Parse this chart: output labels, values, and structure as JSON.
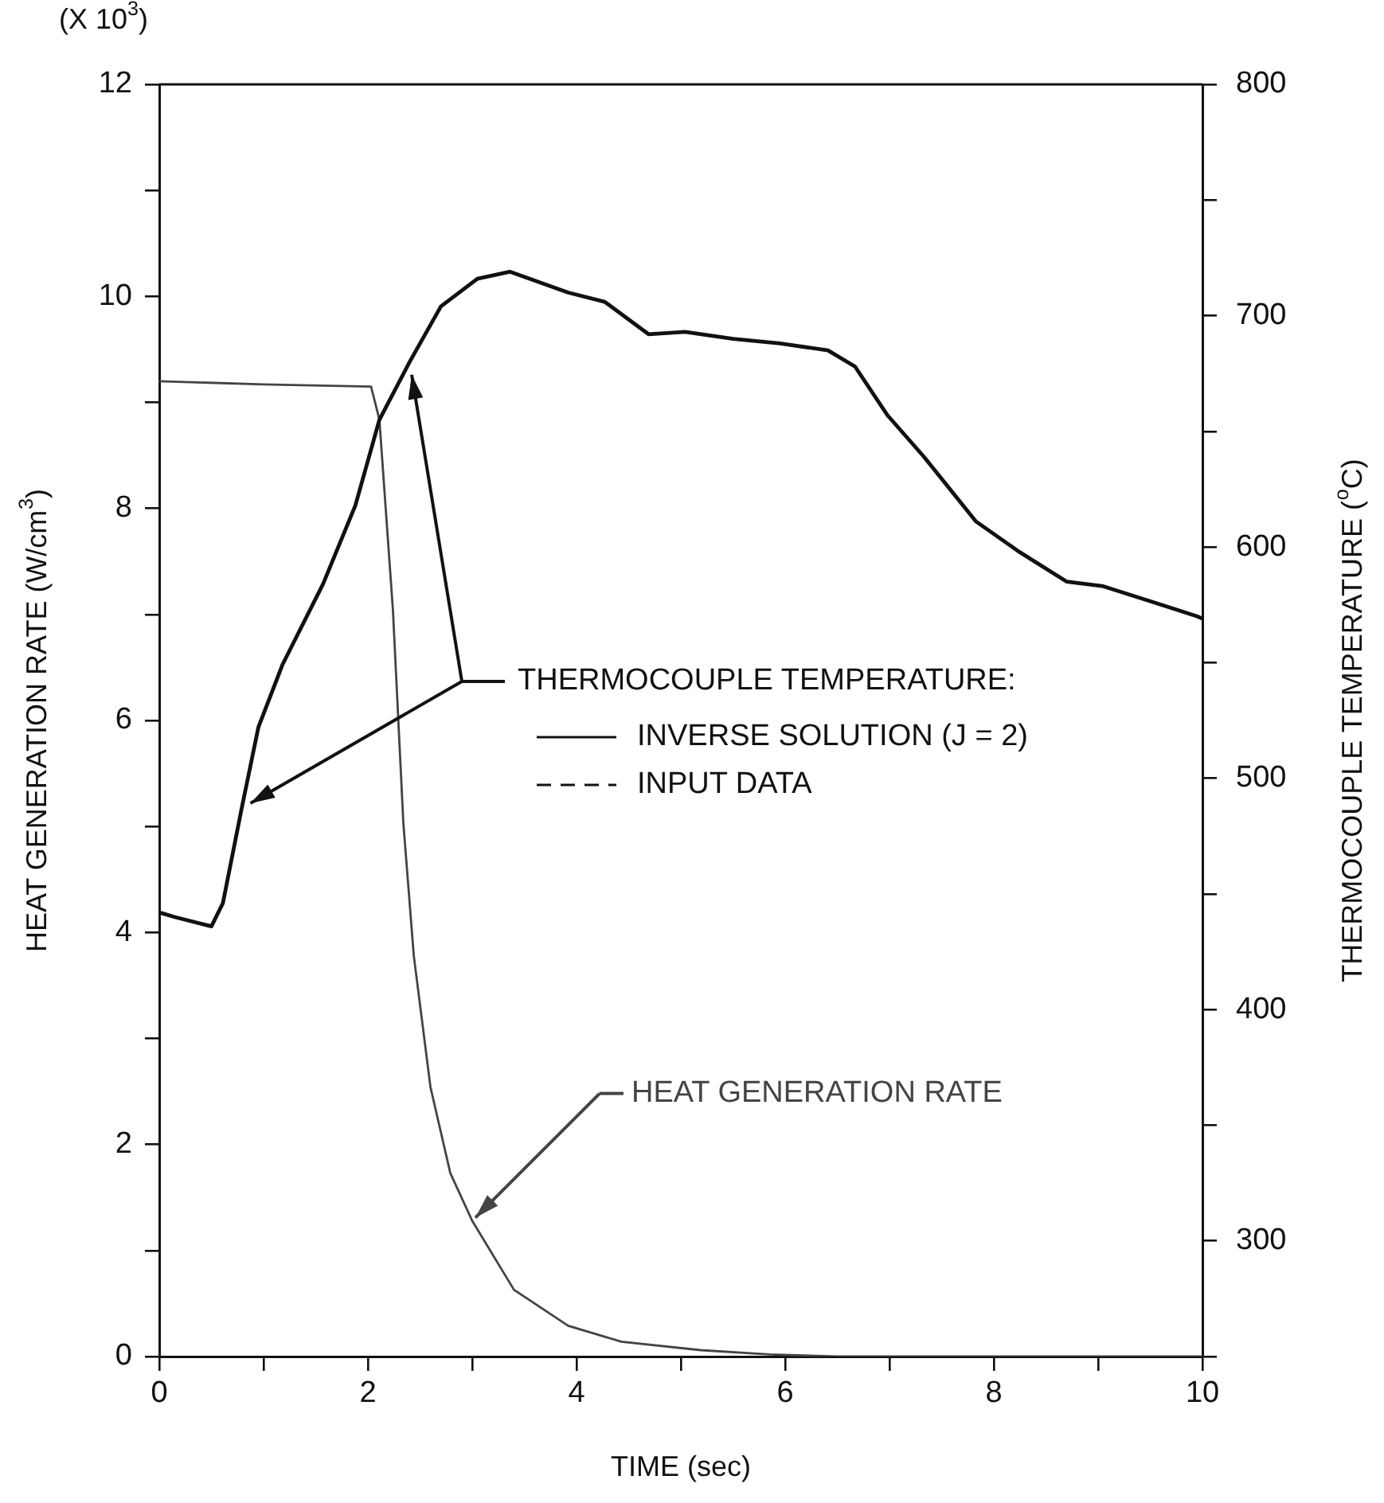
{
  "chart_data": {
    "type": "line",
    "xlabel": "TIME (sec)",
    "ylabel": "HEAT GENERATION RATE (W/cm$^{3}$)",
    "y2label": "THERMOCOUPLE TEMPERATURE ($^{o}$C)",
    "legend_title": "THERMOCOUPLE TEMPERATURE:",
    "legend": "right",
    "annotations": [
      "(X 10$^{3}$)"
    ],
    "xlim": [
      0,
      10
    ],
    "xticks": [
      0,
      {
        "value": 1,
        "label": null
      },
      2,
      {
        "value": 3,
        "label": null
      },
      4,
      {
        "value": 5,
        "label": null
      },
      6,
      {
        "value": 7,
        "label": null
      },
      8,
      {
        "value": 9,
        "label": null
      },
      10
    ],
    "ylim": [
      0,
      12
    ],
    "yticks": [
      0,
      {
        "value": 1,
        "label": null
      },
      2,
      {
        "value": 3,
        "label": null
      },
      4,
      {
        "value": 5,
        "label": null
      },
      6,
      {
        "value": 7,
        "label": null
      },
      8,
      {
        "value": 9,
        "label": null
      },
      10,
      {
        "value": 11,
        "label": null
      },
      12
    ],
    "y2lim": [
      250,
      800
    ],
    "y2ticks": [
      {
        "value": 250,
        "label": null
      },
      300,
      {
        "value": 350,
        "label": null
      },
      400,
      {
        "value": 450,
        "label": null
      },
      500,
      {
        "value": 550,
        "label": null
      },
      600,
      {
        "value": 650,
        "label": null
      },
      700,
      {
        "value": 750,
        "label": null
      },
      800
    ],
    "grid": false,
    "marker": "none",
    "series": [
      {
        "name": "INVERSE SOLUTION (J = 2)",
        "color": "#111111",
        "axis": "y2",
        "line_style": "solid",
        "x": [
          0,
          0.15,
          0.5,
          0.61,
          0.79,
          0.95,
          1.18,
          1.57,
          1.88,
          2.11,
          2.4,
          2.7,
          3.05,
          3.36,
          3.92,
          4.27,
          4.69,
          5.04,
          5.5,
          5.95,
          6.41,
          6.67,
          6.98,
          7.33,
          7.83,
          8.24,
          8.7,
          9.05,
          9.47,
          9.95,
          10
        ],
        "values": [
          442,
          440,
          436,
          446,
          487,
          522,
          549,
          584,
          618,
          655,
          680,
          704,
          716,
          719,
          710,
          706,
          692,
          693,
          690,
          688,
          685,
          678,
          657,
          639,
          611,
          598,
          585,
          583,
          577,
          570,
          569
        ]
      },
      {
        "name": "INPUT DATA",
        "color": "#111111",
        "axis": "y2",
        "line_style": "dashed"
      },
      {
        "name": "HEAT GENERATION RATE",
        "color": "#444444",
        "line_style": "solid",
        "x": [
          0,
          1.0,
          2.03,
          2.11,
          2.24,
          2.34,
          2.38,
          2.44,
          2.6,
          2.79,
          3.0,
          3.4,
          3.92,
          4.43,
          5.19,
          5.85,
          6.5,
          8,
          10
        ],
        "values": [
          9.2,
          9.17,
          9.15,
          8.84,
          7.04,
          5.03,
          4.53,
          3.78,
          2.54,
          1.73,
          1.28,
          0.63,
          0.29,
          0.14,
          0.06,
          0.02,
          0,
          0,
          0
        ]
      }
    ]
  }
}
